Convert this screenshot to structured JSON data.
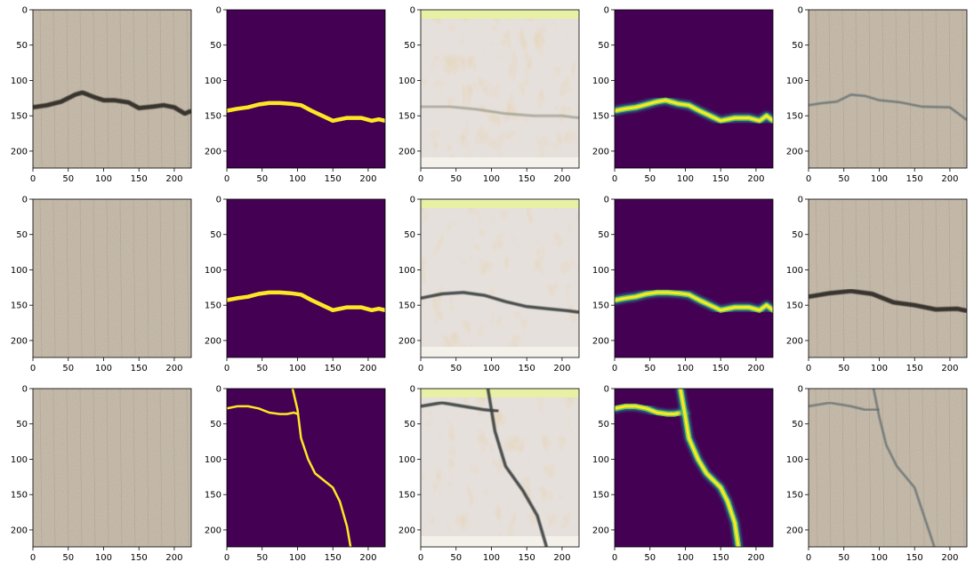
{
  "figure": {
    "rows": 3,
    "cols": 5,
    "background": "#ffffff",
    "axis_color": "#000000"
  },
  "chart_data": [
    {
      "type": "image",
      "panel": "r1c1",
      "content": "concrete photo with dark horizontal crack",
      "xlim": [
        0,
        224
      ],
      "ylim": [
        224,
        0
      ],
      "x_ticks": [
        0,
        50,
        100,
        150,
        200
      ],
      "y_ticks": [
        0,
        50,
        100,
        150,
        200
      ],
      "crack": [
        [
          0,
          138
        ],
        [
          20,
          135
        ],
        [
          40,
          130
        ],
        [
          60,
          120
        ],
        [
          70,
          117
        ],
        [
          85,
          123
        ],
        [
          100,
          128
        ],
        [
          115,
          128
        ],
        [
          135,
          131
        ],
        [
          150,
          139
        ],
        [
          170,
          137
        ],
        [
          185,
          135
        ],
        [
          200,
          138
        ],
        [
          215,
          147
        ],
        [
          224,
          143
        ]
      ]
    },
    {
      "type": "image",
      "panel": "r1c2",
      "content": "binary crack mask (viridis)",
      "xlim": [
        0,
        224
      ],
      "ylim": [
        224,
        0
      ],
      "x_ticks": [
        0,
        50,
        100,
        150,
        200
      ],
      "y_ticks": [
        0,
        50,
        100,
        150,
        200
      ],
      "crack": [
        [
          0,
          143
        ],
        [
          15,
          140
        ],
        [
          30,
          138
        ],
        [
          45,
          134
        ],
        [
          60,
          132
        ],
        [
          75,
          132
        ],
        [
          90,
          133
        ],
        [
          105,
          135
        ],
        [
          120,
          143
        ],
        [
          135,
          150
        ],
        [
          150,
          157
        ],
        [
          170,
          153
        ],
        [
          190,
          153
        ],
        [
          205,
          157
        ],
        [
          215,
          155
        ],
        [
          224,
          157
        ]
      ]
    },
    {
      "type": "image",
      "panel": "r1c3",
      "content": "generated texture image",
      "xlim": [
        0,
        224
      ],
      "ylim": [
        224,
        0
      ],
      "x_ticks": [
        0,
        50,
        100,
        150,
        200
      ],
      "y_ticks": [
        0,
        50,
        100,
        150,
        200
      ],
      "crack": [
        [
          0,
          137
        ],
        [
          40,
          137
        ],
        [
          80,
          141
        ],
        [
          120,
          147
        ],
        [
          160,
          150
        ],
        [
          200,
          150
        ],
        [
          224,
          153
        ]
      ]
    },
    {
      "type": "image",
      "panel": "r1c4",
      "content": "predicted crack heatmap (viridis)",
      "xlim": [
        0,
        224
      ],
      "ylim": [
        224,
        0
      ],
      "x_ticks": [
        0,
        50,
        100,
        150,
        200
      ],
      "y_ticks": [
        0,
        50,
        100,
        150,
        200
      ],
      "crack": [
        [
          0,
          143
        ],
        [
          15,
          140
        ],
        [
          30,
          138
        ],
        [
          45,
          134
        ],
        [
          60,
          130
        ],
        [
          72,
          128
        ],
        [
          90,
          133
        ],
        [
          105,
          135
        ],
        [
          120,
          143
        ],
        [
          135,
          150
        ],
        [
          150,
          157
        ],
        [
          170,
          153
        ],
        [
          190,
          153
        ],
        [
          205,
          157
        ],
        [
          215,
          150
        ],
        [
          224,
          157
        ]
      ]
    },
    {
      "type": "image",
      "panel": "r1c5",
      "content": "concrete photo with faint crack",
      "xlim": [
        0,
        224
      ],
      "ylim": [
        224,
        0
      ],
      "x_ticks": [
        0,
        50,
        100,
        150,
        200
      ],
      "y_ticks": [
        0,
        50,
        100,
        150,
        200
      ],
      "crack": [
        [
          0,
          135
        ],
        [
          20,
          132
        ],
        [
          40,
          130
        ],
        [
          60,
          120
        ],
        [
          80,
          122
        ],
        [
          100,
          128
        ],
        [
          130,
          131
        ],
        [
          160,
          137
        ],
        [
          200,
          138
        ],
        [
          224,
          156
        ]
      ]
    },
    {
      "type": "image",
      "panel": "r2c1",
      "content": "plain concrete photo",
      "xlim": [
        0,
        224
      ],
      "ylim": [
        224,
        0
      ],
      "x_ticks": [
        0,
        50,
        100,
        150,
        200
      ],
      "y_ticks": [
        0,
        50,
        100,
        150,
        200
      ],
      "crack": []
    },
    {
      "type": "image",
      "panel": "r2c2",
      "content": "binary crack mask (viridis)",
      "xlim": [
        0,
        224
      ],
      "ylim": [
        224,
        0
      ],
      "x_ticks": [
        0,
        50,
        100,
        150,
        200
      ],
      "y_ticks": [
        0,
        50,
        100,
        150,
        200
      ],
      "crack": [
        [
          0,
          143
        ],
        [
          15,
          140
        ],
        [
          30,
          138
        ],
        [
          45,
          134
        ],
        [
          60,
          132
        ],
        [
          75,
          132
        ],
        [
          90,
          133
        ],
        [
          105,
          135
        ],
        [
          120,
          143
        ],
        [
          135,
          150
        ],
        [
          150,
          157
        ],
        [
          170,
          153
        ],
        [
          190,
          153
        ],
        [
          205,
          157
        ],
        [
          215,
          155
        ],
        [
          224,
          157
        ]
      ]
    },
    {
      "type": "image",
      "panel": "r2c3",
      "content": "generated texture image with dark crack",
      "xlim": [
        0,
        224
      ],
      "ylim": [
        224,
        0
      ],
      "x_ticks": [
        0,
        50,
        100,
        150,
        200
      ],
      "y_ticks": [
        0,
        50,
        100,
        150,
        200
      ],
      "crack": [
        [
          0,
          140
        ],
        [
          30,
          134
        ],
        [
          60,
          132
        ],
        [
          90,
          136
        ],
        [
          120,
          145
        ],
        [
          150,
          152
        ],
        [
          180,
          155
        ],
        [
          210,
          158
        ],
        [
          224,
          160
        ]
      ]
    },
    {
      "type": "image",
      "panel": "r2c4",
      "content": "predicted crack heatmap (viridis)",
      "xlim": [
        0,
        224
      ],
      "ylim": [
        224,
        0
      ],
      "x_ticks": [
        0,
        50,
        100,
        150,
        200
      ],
      "y_ticks": [
        0,
        50,
        100,
        150,
        200
      ],
      "crack": [
        [
          0,
          143
        ],
        [
          15,
          140
        ],
        [
          30,
          138
        ],
        [
          45,
          134
        ],
        [
          60,
          132
        ],
        [
          75,
          132
        ],
        [
          90,
          133
        ],
        [
          105,
          135
        ],
        [
          120,
          143
        ],
        [
          135,
          150
        ],
        [
          150,
          157
        ],
        [
          170,
          153
        ],
        [
          190,
          153
        ],
        [
          205,
          157
        ],
        [
          215,
          150
        ],
        [
          224,
          157
        ]
      ]
    },
    {
      "type": "image",
      "panel": "r2c5",
      "content": "concrete photo with dark crack",
      "xlim": [
        0,
        224
      ],
      "ylim": [
        224,
        0
      ],
      "x_ticks": [
        0,
        50,
        100,
        150,
        200
      ],
      "y_ticks": [
        0,
        50,
        100,
        150,
        200
      ],
      "crack": [
        [
          0,
          138
        ],
        [
          30,
          133
        ],
        [
          60,
          130
        ],
        [
          90,
          134
        ],
        [
          120,
          146
        ],
        [
          150,
          150
        ],
        [
          180,
          156
        ],
        [
          210,
          155
        ],
        [
          224,
          158
        ]
      ]
    },
    {
      "type": "image",
      "panel": "r3c1",
      "content": "plain concrete photo",
      "xlim": [
        0,
        224
      ],
      "ylim": [
        224,
        0
      ],
      "x_ticks": [
        0,
        50,
        100,
        150,
        200
      ],
      "y_ticks": [
        0,
        50,
        100,
        150,
        200
      ],
      "crack": []
    },
    {
      "type": "image",
      "panel": "r3c2",
      "content": "binary crack mask (viridis)",
      "xlim": [
        0,
        224
      ],
      "ylim": [
        224,
        0
      ],
      "x_ticks": [
        0,
        50,
        100,
        150,
        200
      ],
      "y_ticks": [
        0,
        50,
        100,
        150,
        200
      ],
      "crack": [
        [
          0,
          28
        ],
        [
          15,
          25
        ],
        [
          30,
          25
        ],
        [
          45,
          28
        ],
        [
          60,
          34
        ],
        [
          75,
          36
        ],
        [
          85,
          36
        ],
        [
          95,
          34
        ],
        [
          100,
          36
        ]
      ],
      "crack2": [
        [
          93,
          0
        ],
        [
          100,
          30
        ],
        [
          105,
          70
        ],
        [
          115,
          100
        ],
        [
          125,
          120
        ],
        [
          150,
          140
        ],
        [
          160,
          160
        ],
        [
          170,
          195
        ],
        [
          175,
          224
        ]
      ]
    },
    {
      "type": "image",
      "panel": "r3c3",
      "content": "generated texture image with cracks",
      "xlim": [
        0,
        224
      ],
      "ylim": [
        224,
        0
      ],
      "x_ticks": [
        0,
        50,
        100,
        150,
        200
      ],
      "y_ticks": [
        0,
        50,
        100,
        150,
        200
      ],
      "crack": [
        [
          0,
          25
        ],
        [
          30,
          20
        ],
        [
          60,
          25
        ],
        [
          90,
          30
        ],
        [
          110,
          32
        ]
      ],
      "crack2": [
        [
          95,
          0
        ],
        [
          105,
          60
        ],
        [
          120,
          110
        ],
        [
          145,
          145
        ],
        [
          165,
          180
        ],
        [
          178,
          224
        ]
      ]
    },
    {
      "type": "image",
      "panel": "r3c4",
      "content": "predicted crack heatmap (viridis)",
      "xlim": [
        0,
        224
      ],
      "ylim": [
        224,
        0
      ],
      "x_ticks": [
        0,
        50,
        100,
        150,
        200
      ],
      "y_ticks": [
        0,
        50,
        100,
        150,
        200
      ],
      "crack": [
        [
          0,
          28
        ],
        [
          15,
          25
        ],
        [
          30,
          25
        ],
        [
          45,
          28
        ],
        [
          60,
          34
        ],
        [
          75,
          36
        ],
        [
          85,
          36
        ],
        [
          95,
          34
        ],
        [
          100,
          36
        ]
      ],
      "crack2": [
        [
          93,
          0
        ],
        [
          100,
          40
        ],
        [
          105,
          70
        ],
        [
          118,
          100
        ],
        [
          130,
          120
        ],
        [
          150,
          140
        ],
        [
          160,
          160
        ],
        [
          170,
          190
        ],
        [
          175,
          224
        ]
      ]
    },
    {
      "type": "image",
      "panel": "r3c5",
      "content": "concrete photo with cracks",
      "xlim": [
        0,
        224
      ],
      "ylim": [
        224,
        0
      ],
      "x_ticks": [
        0,
        50,
        100,
        150,
        200
      ],
      "y_ticks": [
        0,
        50,
        100,
        150,
        200
      ],
      "crack": [
        [
          0,
          25
        ],
        [
          30,
          20
        ],
        [
          60,
          25
        ],
        [
          80,
          30
        ],
        [
          100,
          30
        ]
      ],
      "crack2": [
        [
          92,
          0
        ],
        [
          100,
          40
        ],
        [
          110,
          80
        ],
        [
          125,
          110
        ],
        [
          150,
          140
        ],
        [
          160,
          170
        ],
        [
          170,
          200
        ],
        [
          178,
          224
        ]
      ]
    }
  ]
}
